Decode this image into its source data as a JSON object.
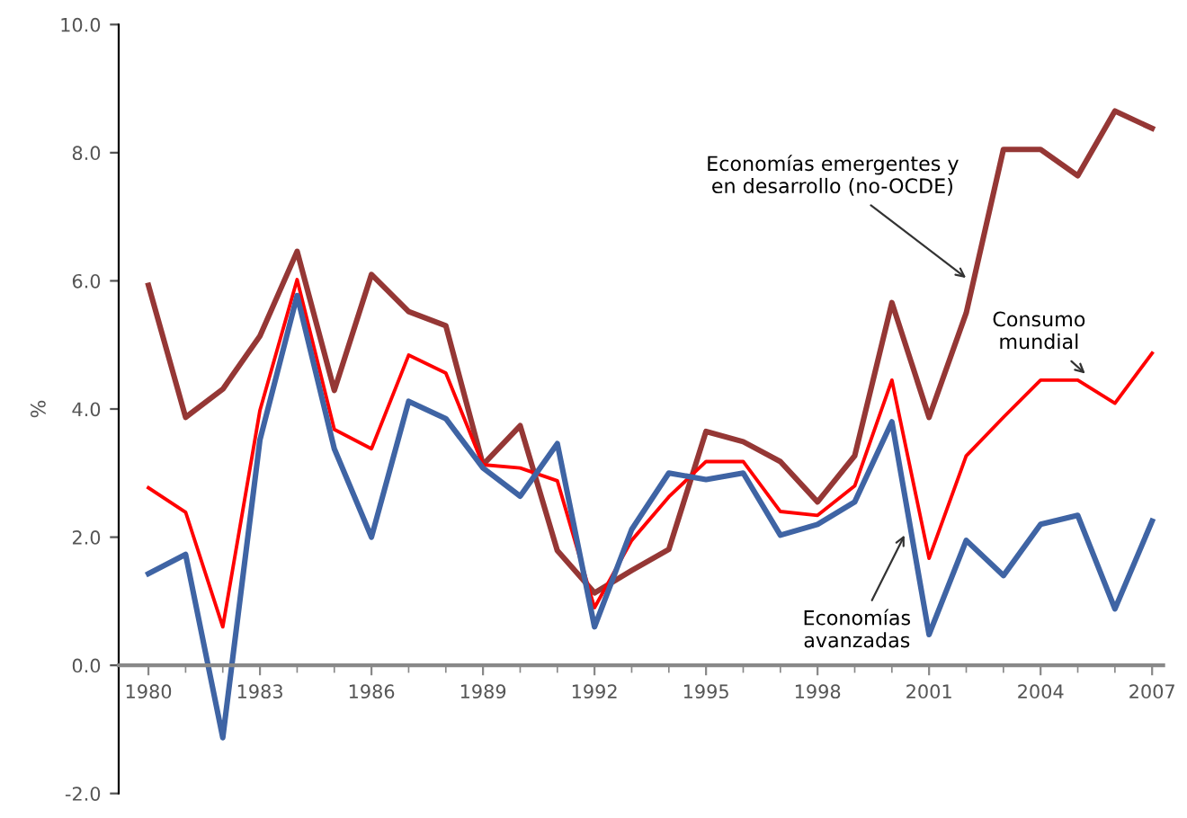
{
  "chart_data": {
    "type": "line",
    "ylabel": "%",
    "x": [
      1980,
      1981,
      1982,
      1983,
      1984,
      1985,
      1986,
      1987,
      1988,
      1989,
      1990,
      1991,
      1992,
      1993,
      1994,
      1995,
      1996,
      1997,
      1998,
      1999,
      2000,
      2001,
      2002,
      2003,
      2004,
      2005,
      2006,
      2007
    ],
    "series": [
      {
        "color": "#953735",
        "values": [
          5.93,
          3.87,
          4.31,
          5.14,
          6.46,
          4.29,
          6.1,
          5.52,
          5.3,
          3.13,
          3.74,
          1.79,
          1.13,
          1.48,
          1.81,
          3.65,
          3.49,
          3.18,
          2.55,
          3.27,
          5.66,
          3.87,
          5.5,
          8.05,
          8.05,
          7.64,
          8.65,
          8.38
        ]
      },
      {
        "color": "#ff0000",
        "values": [
          2.77,
          2.39,
          0.6,
          3.98,
          6.02,
          3.68,
          3.38,
          4.84,
          4.56,
          3.13,
          3.08,
          2.88,
          0.9,
          1.95,
          2.63,
          3.18,
          3.18,
          2.4,
          2.34,
          2.8,
          4.45,
          1.67,
          3.27,
          3.87,
          4.45,
          4.45,
          4.09,
          4.87
        ]
      },
      {
        "color": "#3f64a4",
        "values": [
          1.43,
          1.73,
          -1.13,
          3.52,
          5.77,
          3.38,
          2.0,
          4.12,
          3.85,
          3.08,
          2.64,
          3.46,
          0.6,
          2.12,
          3.0,
          2.9,
          3.0,
          2.03,
          2.2,
          2.55,
          3.8,
          0.48,
          1.95,
          1.4,
          2.2,
          2.34,
          0.88,
          2.25
        ]
      }
    ],
    "annotations": [
      {
        "text": "Economías emergentes y\nen desarrollo (no-OCDE)",
        "x": 2002.1,
        "y": 6.0
      },
      {
        "text": "Consumo\nmundial",
        "x": 2005.3,
        "y": 4.5
      },
      {
        "text": "Economías\navanzadas",
        "x": 2000.4,
        "y": 2.1
      }
    ],
    "xlim": [
      1979.2,
      2007.3
    ],
    "xticks": [
      1980,
      1983,
      1986,
      1989,
      1992,
      1995,
      1998,
      2001,
      2004,
      2007
    ],
    "ylim": [
      -2,
      10
    ],
    "yticks": [
      {
        "value": -2,
        "label": "-2.0"
      },
      {
        "value": 0,
        "label": "0.0"
      },
      {
        "value": 2,
        "label": "2.0"
      },
      {
        "value": 4,
        "label": "4.0"
      },
      {
        "value": 6,
        "label": "6.0"
      },
      {
        "value": 8,
        "label": "8.0"
      },
      {
        "value": 10,
        "label": "10.0"
      }
    ],
    "grid": false,
    "legend": false,
    "line_style": "solid"
  }
}
